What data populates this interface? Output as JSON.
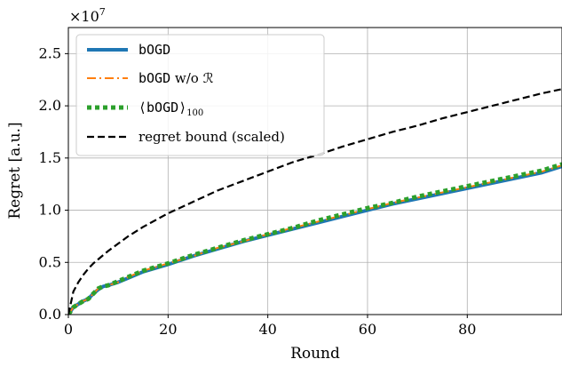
{
  "chart_data": {
    "type": "line",
    "xlabel": "Round",
    "ylabel": "Regret [a.u.]",
    "offset_label": "×10^7",
    "offset_base": "×10",
    "offset_exp": "7",
    "xlim": [
      0,
      99
    ],
    "ylim": [
      0,
      2.75
    ],
    "y_unit_multiplier": 10000000,
    "xticks": [
      "0",
      "20",
      "40",
      "60",
      "80"
    ],
    "yticks": [
      "0.0",
      "0.5",
      "1.0",
      "1.5",
      "2.0",
      "2.5"
    ],
    "grid": true,
    "legend_position": "top-left",
    "x": [
      0,
      1,
      2,
      3,
      4,
      5,
      6,
      7,
      8,
      10,
      12,
      15,
      20,
      25,
      30,
      35,
      40,
      45,
      50,
      55,
      60,
      65,
      70,
      75,
      80,
      85,
      90,
      95,
      99
    ],
    "series": [
      {
        "name": "bOGD",
        "color": "#1f77b4",
        "style": "solid",
        "values": [
          0.0,
          0.07,
          0.1,
          0.13,
          0.15,
          0.2,
          0.24,
          0.27,
          0.28,
          0.31,
          0.35,
          0.41,
          0.48,
          0.56,
          0.63,
          0.7,
          0.76,
          0.82,
          0.88,
          0.94,
          1.0,
          1.06,
          1.11,
          1.16,
          1.21,
          1.26,
          1.31,
          1.36,
          1.42
        ]
      },
      {
        "name": "bOGD w/o R",
        "color": "#ff7f0e",
        "style": "dashdot",
        "values": [
          0.0,
          0.07,
          0.1,
          0.13,
          0.15,
          0.2,
          0.25,
          0.27,
          0.28,
          0.31,
          0.36,
          0.42,
          0.49,
          0.56,
          0.64,
          0.7,
          0.77,
          0.83,
          0.89,
          0.95,
          1.01,
          1.07,
          1.12,
          1.17,
          1.22,
          1.27,
          1.32,
          1.37,
          1.43
        ]
      },
      {
        "name": "⟨bOGD⟩100",
        "color": "#2ca02c",
        "style": "dotted",
        "values": [
          0.0,
          0.07,
          0.1,
          0.13,
          0.15,
          0.2,
          0.25,
          0.27,
          0.28,
          0.32,
          0.36,
          0.42,
          0.49,
          0.57,
          0.64,
          0.71,
          0.77,
          0.83,
          0.9,
          0.96,
          1.02,
          1.07,
          1.13,
          1.18,
          1.23,
          1.28,
          1.33,
          1.38,
          1.44
        ]
      },
      {
        "name": "regret bound (scaled)",
        "color": "#000000",
        "style": "dashed",
        "values": [
          0.0,
          0.22,
          0.31,
          0.38,
          0.44,
          0.49,
          0.53,
          0.57,
          0.61,
          0.68,
          0.75,
          0.84,
          0.97,
          1.08,
          1.19,
          1.28,
          1.37,
          1.46,
          1.53,
          1.61,
          1.68,
          1.75,
          1.81,
          1.88,
          1.94,
          2.0,
          2.06,
          2.12,
          2.16
        ]
      }
    ]
  },
  "legend": {
    "items": [
      {
        "mono": "bOGD",
        "suffix": "",
        "sub": ""
      },
      {
        "mono": "bOGD",
        "suffix": " w/o ℛ",
        "sub": ""
      },
      {
        "mono": "⟨bOGD⟩",
        "suffix": "",
        "sub": "100"
      },
      {
        "mono": "",
        "suffix": "regret bound (scaled)",
        "sub": ""
      }
    ]
  }
}
